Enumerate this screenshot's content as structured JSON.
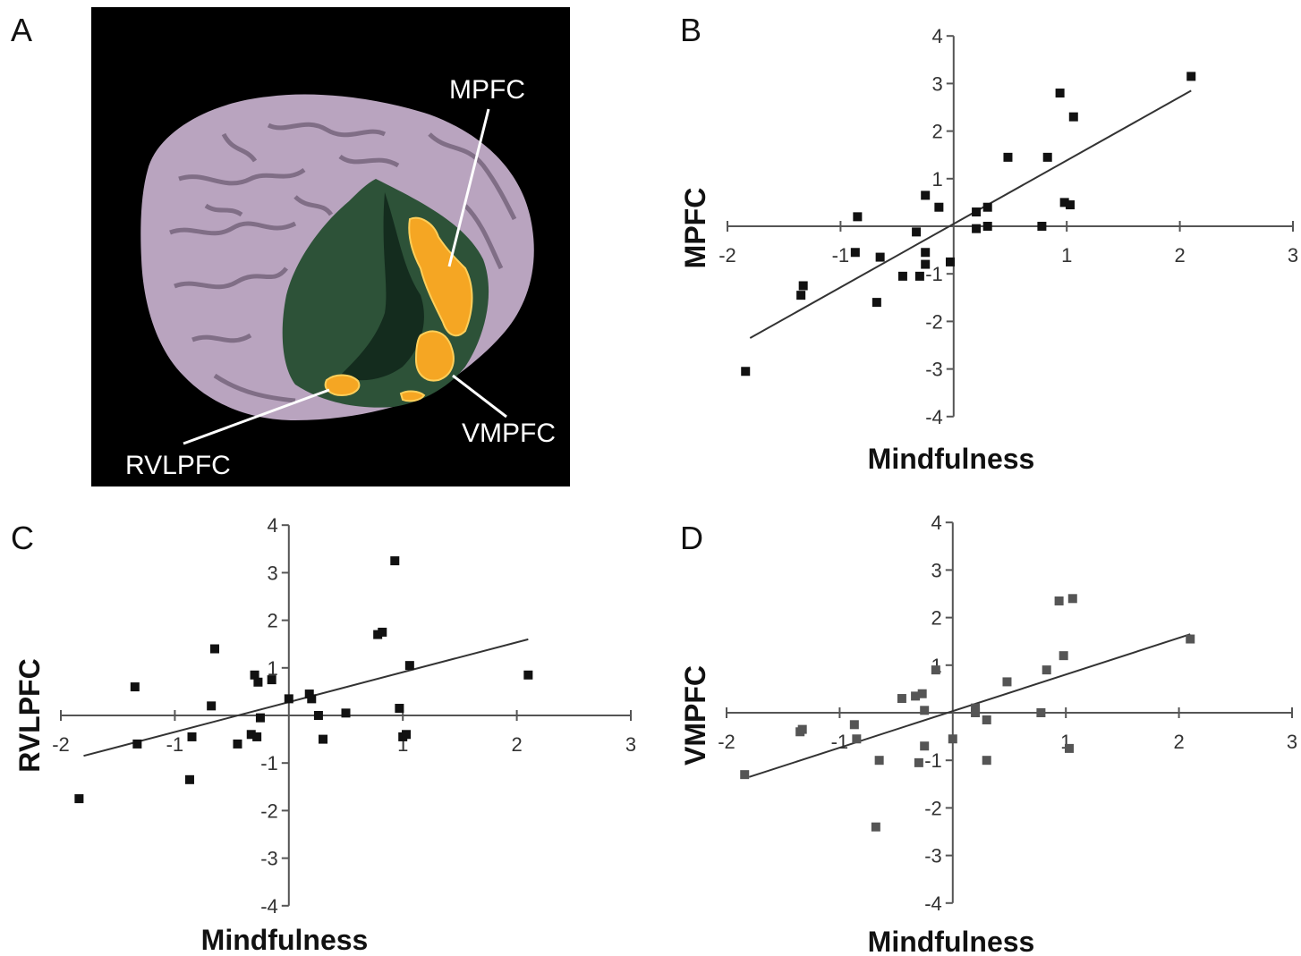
{
  "panel_labels": {
    "a": "A",
    "b": "B",
    "c": "C",
    "d": "D"
  },
  "brain": {
    "labels": {
      "mpfc": "MPFC",
      "vmpfc": "VMPFC",
      "rvlpfc": "RVLPFC"
    },
    "colors": {
      "background": "#000000",
      "cortex": "#b9a4bf",
      "medial_surface": "#2d5238",
      "activation": "#f5a623"
    }
  },
  "chart_data": [
    {
      "id": "B",
      "type": "scatter",
      "xlabel": "Mindfulness",
      "ylabel": "MPFC",
      "xlim": [
        -2,
        3
      ],
      "ylim": [
        -4,
        4
      ],
      "xticks": [
        -2,
        -1,
        1,
        2,
        3
      ],
      "yticks": [
        4,
        3,
        2,
        1,
        -1,
        -2,
        -3,
        -4
      ],
      "marker_color": "#111111",
      "fit_line": [
        [
          -1.8,
          -2.35
        ],
        [
          2.1,
          2.85
        ]
      ],
      "points": [
        [
          -1.84,
          -3.05
        ],
        [
          -1.33,
          -1.25
        ],
        [
          -1.35,
          -1.45
        ],
        [
          -0.85,
          0.2
        ],
        [
          -0.87,
          -0.55
        ],
        [
          -0.65,
          -0.65
        ],
        [
          -0.68,
          -1.6
        ],
        [
          -0.45,
          -1.05
        ],
        [
          -0.33,
          -0.12
        ],
        [
          -0.3,
          -1.05
        ],
        [
          -0.25,
          0.65
        ],
        [
          -0.25,
          -0.55
        ],
        [
          -0.25,
          -0.8
        ],
        [
          -0.13,
          0.4
        ],
        [
          -0.03,
          -0.75
        ],
        [
          0.2,
          0.3
        ],
        [
          0.2,
          -0.05
        ],
        [
          0.3,
          0.4
        ],
        [
          0.3,
          0.0
        ],
        [
          0.48,
          1.45
        ],
        [
          0.78,
          0.0
        ],
        [
          0.83,
          1.45
        ],
        [
          0.94,
          2.8
        ],
        [
          0.98,
          0.5
        ],
        [
          1.03,
          0.45
        ],
        [
          1.06,
          2.3
        ],
        [
          2.1,
          3.15
        ]
      ]
    },
    {
      "id": "C",
      "type": "scatter",
      "xlabel": "Mindfulness",
      "ylabel": "RVLPFC",
      "xlim": [
        -2,
        3
      ],
      "ylim": [
        -4,
        4
      ],
      "xticks": [
        -2,
        -1,
        1,
        2,
        3
      ],
      "yticks": [
        4,
        3,
        2,
        1,
        -1,
        -2,
        -3,
        -4
      ],
      "marker_color": "#111111",
      "fit_line": [
        [
          -1.8,
          -0.85
        ],
        [
          2.1,
          1.6
        ]
      ],
      "points": [
        [
          -1.84,
          -1.75
        ],
        [
          -1.35,
          0.6
        ],
        [
          -1.33,
          -0.6
        ],
        [
          -0.87,
          -1.35
        ],
        [
          -0.85,
          -0.45
        ],
        [
          -0.68,
          0.2
        ],
        [
          -0.65,
          1.4
        ],
        [
          -0.45,
          -0.6
        ],
        [
          -0.33,
          -0.4
        ],
        [
          -0.3,
          0.85
        ],
        [
          -0.28,
          -0.45
        ],
        [
          -0.27,
          0.7
        ],
        [
          -0.25,
          -0.05
        ],
        [
          -0.15,
          0.75
        ],
        [
          0.0,
          0.35
        ],
        [
          0.18,
          0.45
        ],
        [
          0.2,
          0.35
        ],
        [
          0.26,
          0.0
        ],
        [
          0.3,
          -0.5
        ],
        [
          0.5,
          0.05
        ],
        [
          0.78,
          1.7
        ],
        [
          0.82,
          1.75
        ],
        [
          0.93,
          3.25
        ],
        [
          0.97,
          0.15
        ],
        [
          1.0,
          -0.45
        ],
        [
          1.03,
          -0.4
        ],
        [
          1.06,
          1.05
        ],
        [
          2.1,
          0.85
        ]
      ]
    },
    {
      "id": "D",
      "type": "scatter",
      "xlabel": "Mindfulness",
      "ylabel": "VMPFC",
      "xlim": [
        -2,
        3
      ],
      "ylim": [
        -4,
        4
      ],
      "xticks": [
        -2,
        -1,
        1,
        2,
        3
      ],
      "yticks": [
        4,
        3,
        2,
        1,
        -1,
        -2,
        -3,
        -4
      ],
      "marker_color": "#555555",
      "fit_line": [
        [
          -1.8,
          -1.35
        ],
        [
          2.1,
          1.65
        ]
      ],
      "points": [
        [
          -1.84,
          -1.3
        ],
        [
          -1.35,
          -0.4
        ],
        [
          -1.33,
          -0.35
        ],
        [
          -0.87,
          -0.25
        ],
        [
          -0.85,
          -0.55
        ],
        [
          -0.65,
          -1.0
        ],
        [
          -0.68,
          -2.4
        ],
        [
          -0.45,
          0.3
        ],
        [
          -0.33,
          0.35
        ],
        [
          -0.3,
          -1.05
        ],
        [
          -0.27,
          0.4
        ],
        [
          -0.25,
          -0.7
        ],
        [
          -0.25,
          0.05
        ],
        [
          -0.15,
          0.9
        ],
        [
          0.0,
          -0.55
        ],
        [
          0.2,
          0.1
        ],
        [
          0.2,
          0.0
        ],
        [
          0.3,
          -0.15
        ],
        [
          0.3,
          -1.0
        ],
        [
          0.48,
          0.65
        ],
        [
          0.78,
          0.0
        ],
        [
          0.83,
          0.9
        ],
        [
          0.94,
          2.35
        ],
        [
          0.98,
          1.2
        ],
        [
          1.03,
          -0.75
        ],
        [
          1.06,
          2.4
        ],
        [
          2.1,
          1.55
        ]
      ]
    }
  ]
}
